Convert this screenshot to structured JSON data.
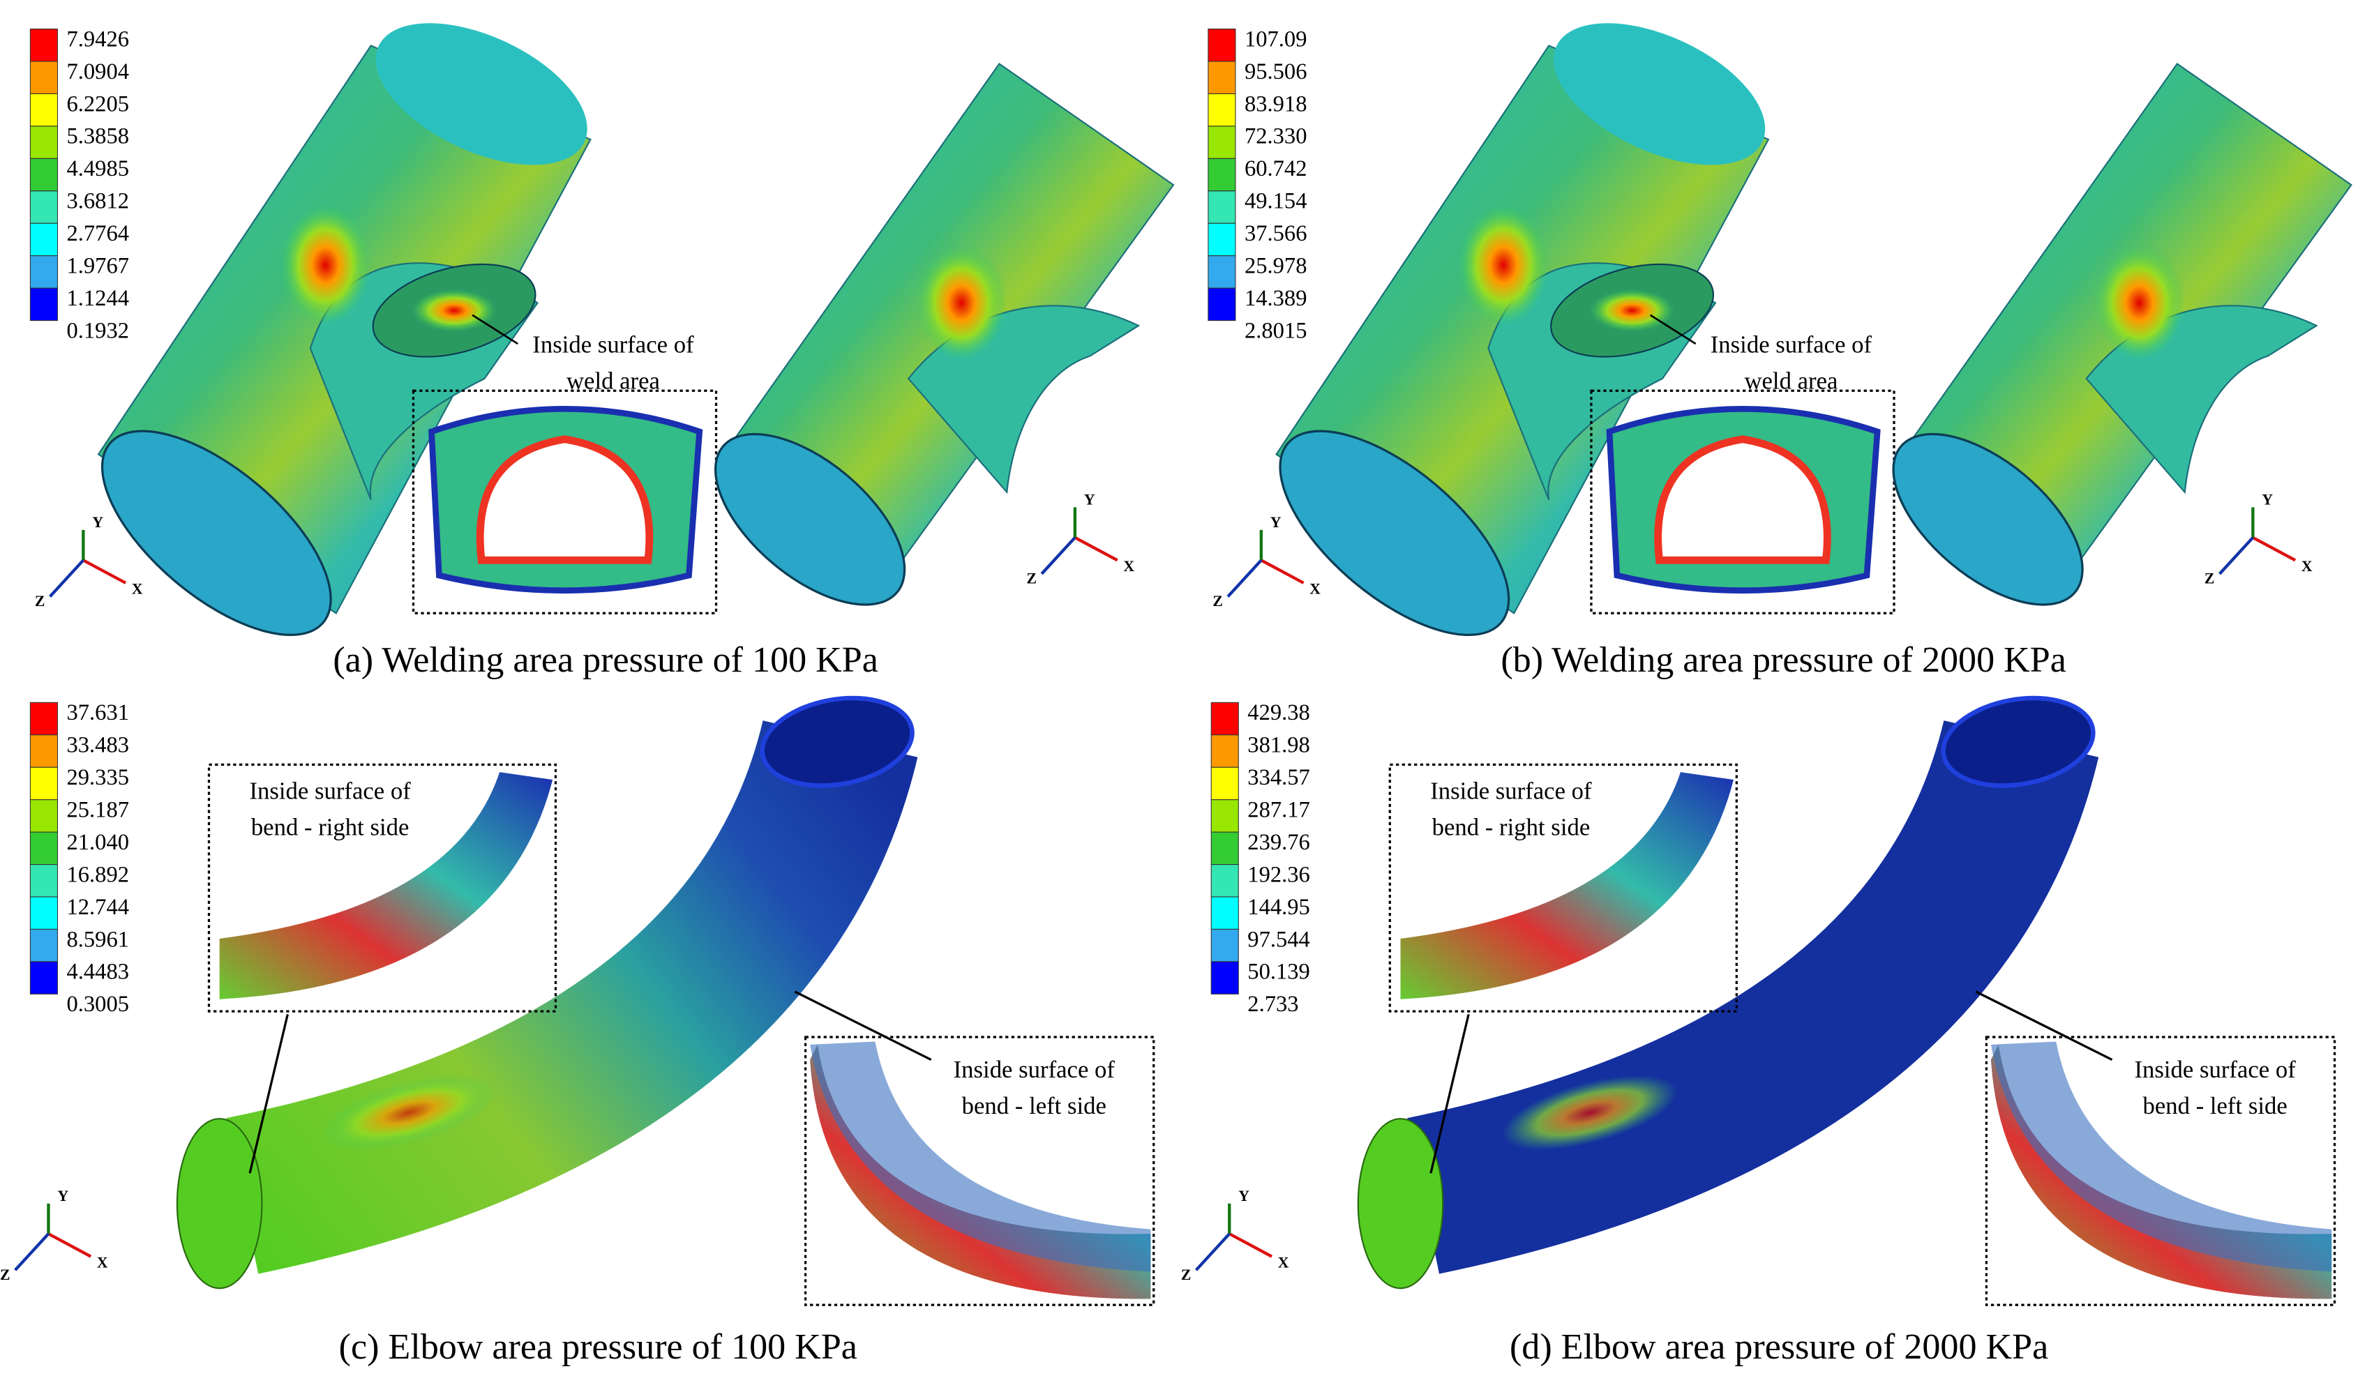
{
  "colormap": [
    "#ff0000",
    "#ff9900",
    "#ffff00",
    "#99e600",
    "#33cc33",
    "#33e6b3",
    "#00ffff",
    "#33aaee",
    "#0000ff"
  ],
  "panels": [
    {
      "kind": "tee",
      "caption": "(a) Welding area pressure of 100 KPa",
      "legend": [
        "7.9426",
        "7.0904",
        "6.2205",
        "5.3858",
        "4.4985",
        "3.6812",
        "2.7764",
        "1.9767",
        "1.1244",
        "0.1932"
      ],
      "annotations": [
        {
          "lines": [
            "Inside surface of",
            "weld area"
          ]
        }
      ],
      "triads": [
        [
          "X",
          "Y",
          "Z"
        ],
        [
          "X",
          "Y",
          "Z"
        ]
      ]
    },
    {
      "kind": "tee",
      "caption": "(b) Welding area pressure of 2000 KPa",
      "legend": [
        "107.09",
        "95.506",
        "83.918",
        "72.330",
        "60.742",
        "49.154",
        "37.566",
        "25.978",
        "14.389",
        "2.8015"
      ],
      "annotations": [
        {
          "lines": [
            "Inside surface of",
            "weld area"
          ]
        }
      ],
      "triads": [
        [
          "X",
          "Y",
          "Z"
        ],
        [
          "X",
          "Y",
          "Z"
        ]
      ]
    },
    {
      "kind": "elbow",
      "caption": "(c) Elbow area pressure of 100 KPa",
      "legend": [
        "37.631",
        "33.483",
        "29.335",
        "25.187",
        "21.040",
        "16.892",
        "12.744",
        "8.5961",
        "4.4483",
        "0.3005"
      ],
      "annotations": [
        {
          "lines": [
            "Inside surface of",
            "bend - right side"
          ]
        },
        {
          "lines": [
            "Inside surface of",
            "bend - left side"
          ]
        }
      ],
      "triads": [
        [
          "X",
          "Y",
          "Z"
        ]
      ]
    },
    {
      "kind": "elbow",
      "caption": "(d) Elbow area pressure of 2000 KPa",
      "legend": [
        "429.38",
        "381.98",
        "334.57",
        "287.17",
        "239.76",
        "192.36",
        "144.95",
        "97.544",
        "50.139",
        "2.733"
      ],
      "annotations": [
        {
          "lines": [
            "Inside surface of",
            "bend - right side"
          ]
        },
        {
          "lines": [
            "Inside surface of",
            "bend - left side"
          ]
        }
      ],
      "triads": [
        [
          "X",
          "Y",
          "Z"
        ]
      ]
    }
  ]
}
